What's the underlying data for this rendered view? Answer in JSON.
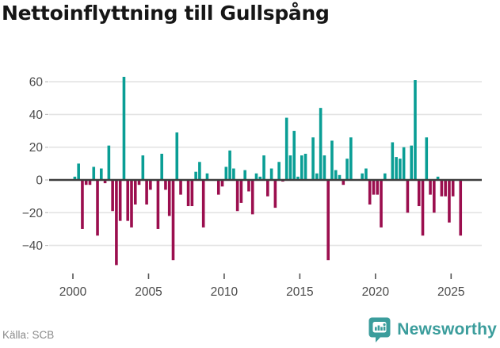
{
  "title": "Nettoinflyttning till Gullspång",
  "source": "Källa: SCB",
  "logo": {
    "text": "Newsworthy",
    "icon": "newsworthy-badge-icon"
  },
  "colors": {
    "positive": "#0a9e95",
    "negative": "#9b0e4e",
    "grid": "#e3e3e3",
    "zero_line": "#3d3d3d",
    "axis_text": "#4a4a4a",
    "tick_mark": "#bdbdbd",
    "x_tick_mark": "#555555",
    "source_text": "#8a8a8a",
    "brand": "#3b9d9c",
    "title_text": "#161616"
  },
  "chart_data": {
    "type": "bar",
    "title": "Nettoinflyttning till Gullspång",
    "xlabel": "",
    "ylabel": "",
    "grid": true,
    "legend": "none",
    "start_year": 2000,
    "start_quarter": 1,
    "frequency": "quarterly",
    "x_tick_labels": [
      "2000",
      "2005",
      "2010",
      "2015",
      "2020",
      "2025"
    ],
    "y_ticks": [
      60,
      40,
      20,
      0,
      -20,
      -40
    ],
    "ylim": [
      -57,
      66
    ],
    "values": [
      2,
      10,
      -30,
      -3,
      -3,
      8,
      -34,
      7,
      -2,
      21,
      -19,
      -52,
      -25,
      63,
      -25,
      -29,
      -15,
      -3,
      15,
      -15,
      -6,
      0,
      -30,
      16,
      -6,
      -22,
      -49,
      29,
      -9,
      0,
      -16,
      -16,
      5,
      11,
      -29,
      4,
      0,
      0,
      -9,
      -4,
      8,
      18,
      7,
      -19,
      -14,
      6,
      -7,
      -21,
      4,
      2,
      15,
      -10,
      7,
      -17,
      11,
      -1,
      38,
      15,
      30,
      2,
      15,
      16,
      0,
      26,
      4,
      44,
      15,
      -49,
      24,
      6,
      3,
      -3,
      13,
      26,
      0,
      0,
      4,
      7,
      -15,
      -9,
      -9,
      -29,
      4,
      0,
      23,
      14,
      13,
      20,
      -20,
      21,
      61,
      -16,
      -34,
      26,
      -9,
      -20,
      2,
      -10,
      -10,
      -26,
      -10,
      0,
      -34
    ]
  }
}
